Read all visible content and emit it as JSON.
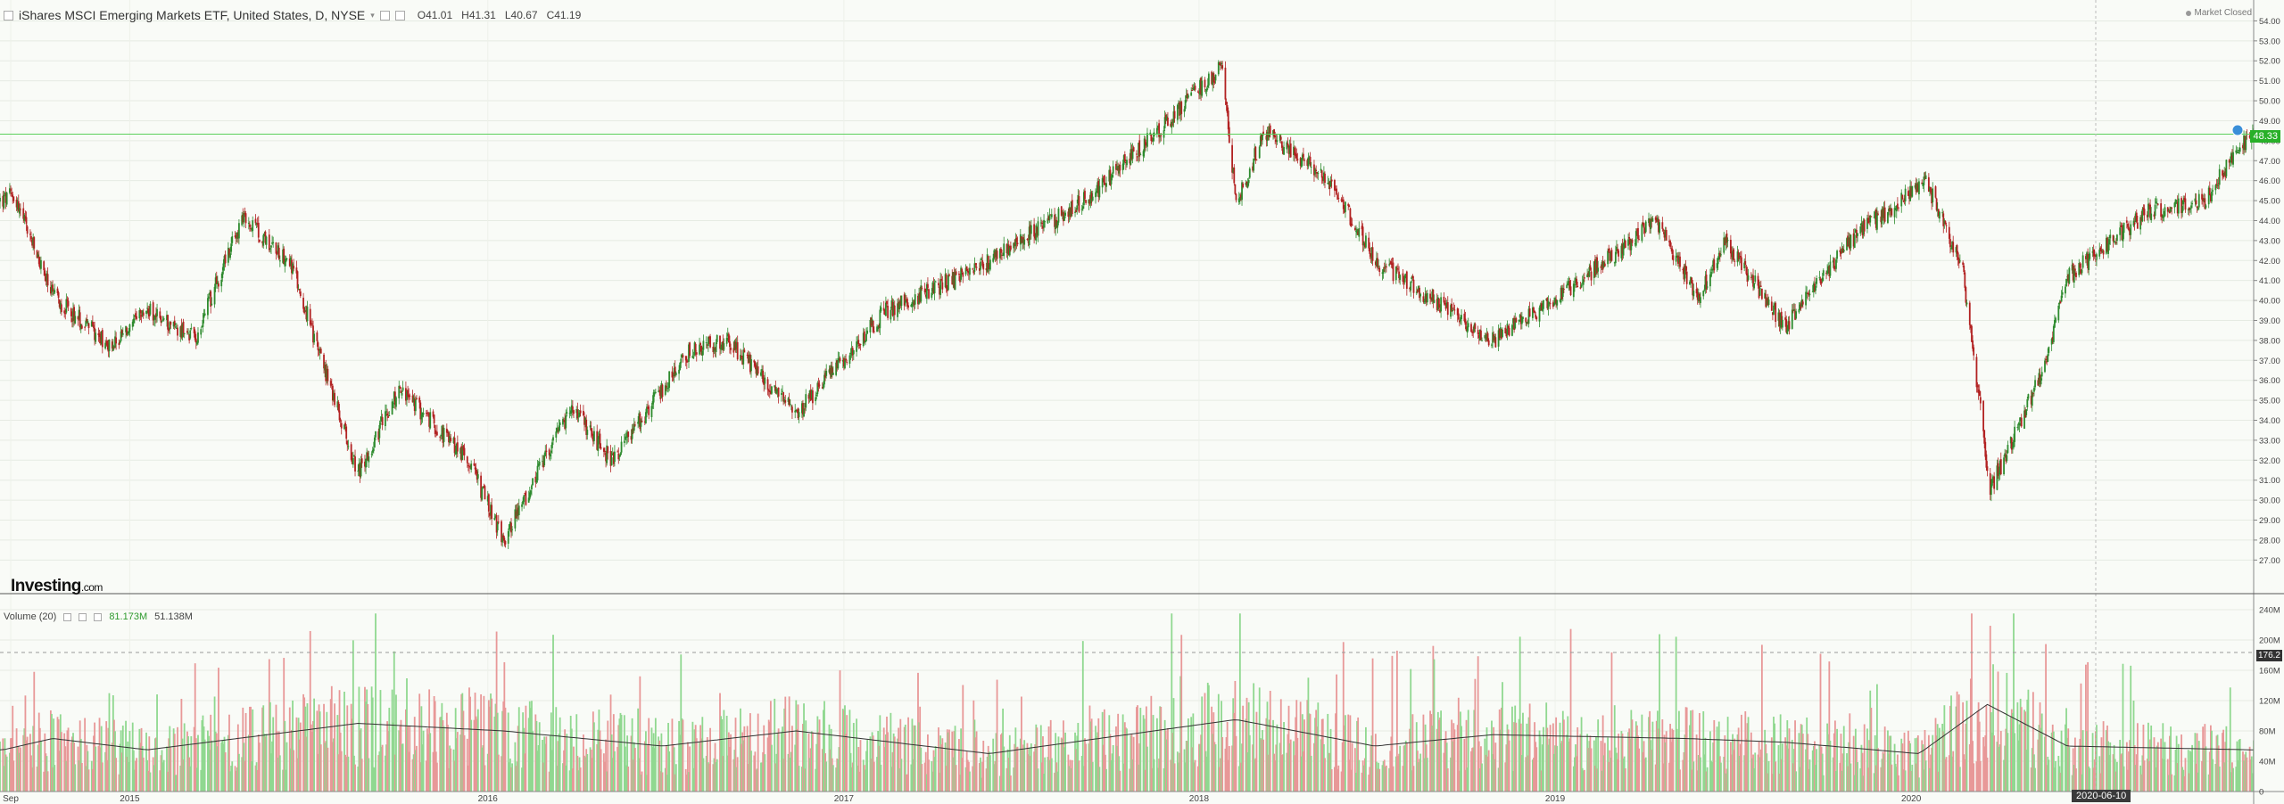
{
  "legend": {
    "title": "iShares MSCI Emerging Markets ETF, United States, D, NYSE",
    "open": "O41.01",
    "high": "H41.31",
    "low": "L40.67",
    "close": "C41.19"
  },
  "market_status": "Market Closed",
  "volume_legend": {
    "label": "Volume (20)",
    "value1": "81.173M",
    "value2": "51.138M"
  },
  "logo": {
    "main": "Investing",
    "suffix": ".com"
  },
  "current_price": "48.33",
  "volume_badge": "176.2",
  "cursor_date": "2020-06-10",
  "colors": {
    "up": "#2e8b2e",
    "down": "#b22222",
    "vol_up": "#90d890",
    "vol_down": "#e89898",
    "price_line": "#5cd05c"
  },
  "chart_data": {
    "type": "candlestick",
    "title": "iShares MSCI Emerging Markets ETF, United States, D, NYSE",
    "price_axis_ticks": [
      "54.00",
      "53.00",
      "52.00",
      "51.00",
      "50.00",
      "49.00",
      "48.00",
      "47.00",
      "46.00",
      "45.00",
      "44.00",
      "43.00",
      "42.00",
      "41.00",
      "40.00",
      "39.00",
      "38.00",
      "37.00",
      "36.00",
      "35.00",
      "34.00",
      "33.00",
      "32.00",
      "31.00",
      "30.00",
      "29.00",
      "28.00",
      "27.00"
    ],
    "volume_axis_ticks": [
      "240M",
      "200M",
      "160M",
      "120M",
      "80M",
      "40M",
      "0"
    ],
    "x_axis_labels": [
      "Sep",
      "2015",
      "2016",
      "2017",
      "2018",
      "2019",
      "2020"
    ],
    "ylim": [
      26.3,
      54.6
    ],
    "volume_ylim": [
      0,
      240
    ],
    "price_keyframes": [
      [
        "2014-08-25",
        45.0
      ],
      [
        "2014-09-05",
        45.3
      ],
      [
        "2014-10-15",
        40.2
      ],
      [
        "2014-12-15",
        37.7
      ],
      [
        "2015-01-20",
        39.5
      ],
      [
        "2015-03-10",
        38.1
      ],
      [
        "2015-04-27",
        44.1
      ],
      [
        "2015-06-15",
        42.0
      ],
      [
        "2015-08-24",
        31.3
      ],
      [
        "2015-10-05",
        35.6
      ],
      [
        "2015-12-15",
        32.0
      ],
      [
        "2016-01-20",
        28.0
      ],
      [
        "2016-03-30",
        34.6
      ],
      [
        "2016-05-10",
        32.0
      ],
      [
        "2016-07-29",
        37.5
      ],
      [
        "2016-09-06",
        38.0
      ],
      [
        "2016-11-15",
        34.3
      ],
      [
        "2017-02-15",
        39.5
      ],
      [
        "2017-05-15",
        41.5
      ],
      [
        "2017-09-15",
        45.3
      ],
      [
        "2018-01-26",
        51.7
      ],
      [
        "2018-02-09",
        44.7
      ],
      [
        "2018-03-10",
        48.5
      ],
      [
        "2018-05-15",
        46.0
      ],
      [
        "2018-07-02",
        42.0
      ],
      [
        "2018-10-30",
        38.0
      ],
      [
        "2019-01-15",
        40.5
      ],
      [
        "2019-04-16",
        44.0
      ],
      [
        "2019-05-28",
        40.1
      ],
      [
        "2019-06-25",
        42.9
      ],
      [
        "2019-08-26",
        38.7
      ],
      [
        "2019-11-05",
        43.2
      ],
      [
        "2020-01-17",
        46.0
      ],
      [
        "2020-02-24",
        41.5
      ],
      [
        "2020-03-23",
        30.5
      ],
      [
        "2020-05-20",
        37.0
      ],
      [
        "2020-06-10",
        41.2
      ],
      [
        "2020-08-31",
        44.4
      ],
      [
        "2020-10-30",
        45.0
      ],
      [
        "2020-11-25",
        47.1
      ],
      [
        "2020-12-17",
        48.33
      ]
    ],
    "volume_avg_keyframes": [
      [
        "2014-08-25",
        55
      ],
      [
        "2014-10-15",
        70
      ],
      [
        "2015-01-20",
        55
      ],
      [
        "2015-08-24",
        90
      ],
      [
        "2016-01-20",
        80
      ],
      [
        "2016-07-01",
        60
      ],
      [
        "2016-11-15",
        80
      ],
      [
        "2017-06-01",
        50
      ],
      [
        "2018-02-09",
        95
      ],
      [
        "2018-07-01",
        60
      ],
      [
        "2018-10-30",
        75
      ],
      [
        "2019-05-15",
        70
      ],
      [
        "2019-08-26",
        65
      ],
      [
        "2020-01-10",
        50
      ],
      [
        "2020-03-20",
        115
      ],
      [
        "2020-06-10",
        60
      ],
      [
        "2020-12-17",
        55
      ]
    ],
    "annotations": [
      "Market Closed",
      "48.33",
      "176.2",
      "2020-06-10"
    ]
  }
}
